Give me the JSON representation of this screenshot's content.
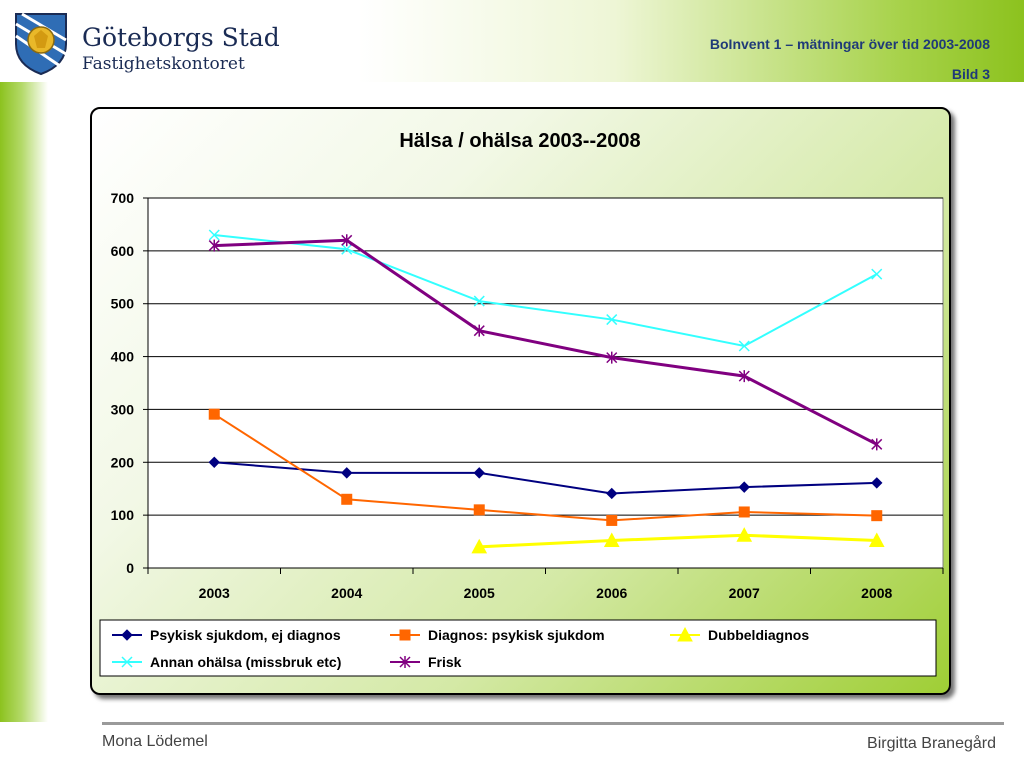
{
  "header": {
    "org_name": "Göteborgs Stad",
    "org_sub": "Fastighetskontoret",
    "presentation_title": "BoInvent 1 – mätningar över tid 2003-2008",
    "slide_label": "Bild 3"
  },
  "footer": {
    "left_name": "Mona Lödemel",
    "right_name": "Birgitta Branegård"
  },
  "colors": {
    "accent_green": "#8cc21e",
    "header_text": "#1f3a78"
  },
  "logo_icon": "coat-of-arms-lion-icon",
  "chart_data": {
    "type": "line",
    "title": "Hälsa / ohälsa 2003--2008",
    "xlabel": "",
    "ylabel": "",
    "categories": [
      "2003",
      "2004",
      "2005",
      "2006",
      "2007",
      "2008"
    ],
    "ylim": [
      0,
      700
    ],
    "yticks": [
      0,
      100,
      200,
      300,
      400,
      500,
      600,
      700
    ],
    "grid": true,
    "legend_position": "bottom",
    "series": [
      {
        "name": "Psykisk sjukdom, ej diagnos",
        "color": "#000080",
        "marker": "diamond",
        "values": [
          200,
          180,
          180,
          141,
          153,
          161
        ]
      },
      {
        "name": "Diagnos: psykisk sjukdom",
        "color": "#ff6600",
        "marker": "square",
        "values": [
          291,
          130,
          110,
          90,
          106,
          99
        ]
      },
      {
        "name": "Dubbeldiagnos",
        "color": "#ffff00",
        "marker": "triangle",
        "values": [
          null,
          null,
          40,
          52,
          62,
          52
        ]
      },
      {
        "name": "Annan ohälsa (missbruk etc)",
        "color": "#33ffff",
        "marker": "x",
        "values": [
          630,
          603,
          505,
          470,
          420,
          556
        ]
      },
      {
        "name": "Frisk",
        "color": "#800080",
        "marker": "star",
        "values": [
          610,
          620,
          449,
          398,
          363,
          234
        ]
      }
    ]
  }
}
